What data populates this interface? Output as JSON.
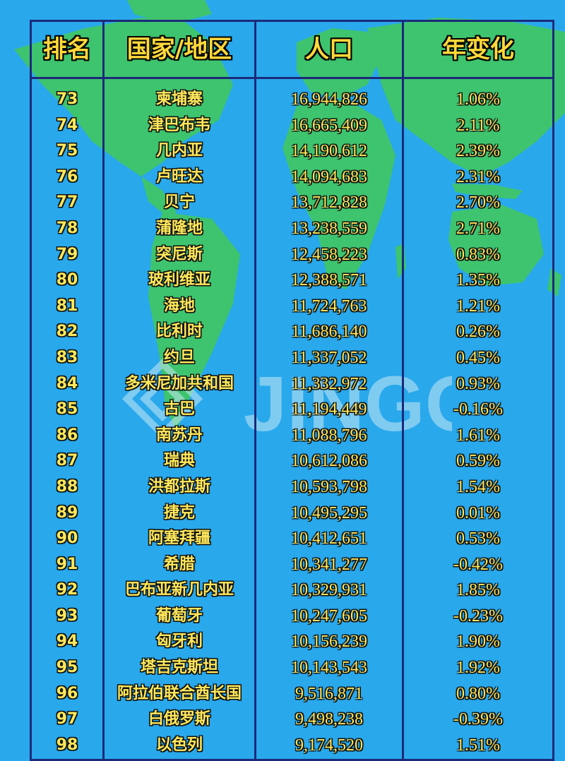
{
  "header": {
    "rank": "排名",
    "country": "国家/地区",
    "population": "人口",
    "change": "年变化"
  },
  "watermark": "JINGONG",
  "colors": {
    "background": "#29a8ec",
    "land": "#3ec46e",
    "border": "#1b2a7a",
    "text": "#ffd83a"
  },
  "rows": [
    {
      "rank": "73",
      "country": "柬埔寨",
      "population": "16,944,826",
      "change": "1.06%"
    },
    {
      "rank": "74",
      "country": "津巴布韦",
      "population": "16,665,409",
      "change": "2.11%"
    },
    {
      "rank": "75",
      "country": "几内亚",
      "population": "14,190,612",
      "change": "2.39%"
    },
    {
      "rank": "76",
      "country": "卢旺达",
      "population": "14,094,683",
      "change": "2.31%"
    },
    {
      "rank": "77",
      "country": "贝宁",
      "population": "13,712,828",
      "change": "2.70%"
    },
    {
      "rank": "78",
      "country": "蒲隆地",
      "population": "13,238,559",
      "change": "2.71%"
    },
    {
      "rank": "79",
      "country": "突尼斯",
      "population": "12,458,223",
      "change": "0.83%"
    },
    {
      "rank": "80",
      "country": "玻利维亚",
      "population": "12,388,571",
      "change": "1.35%"
    },
    {
      "rank": "81",
      "country": "海地",
      "population": "11,724,763",
      "change": "1.21%"
    },
    {
      "rank": "82",
      "country": "比利时",
      "population": "11,686,140",
      "change": "0.26%"
    },
    {
      "rank": "83",
      "country": "约旦",
      "population": "11,337,052",
      "change": "0.45%"
    },
    {
      "rank": "84",
      "country": "多米尼加共和国",
      "population": "11,332,972",
      "change": "0.93%"
    },
    {
      "rank": "85",
      "country": "古巴",
      "population": "11,194,449",
      "change": "-0.16%"
    },
    {
      "rank": "86",
      "country": "南苏丹",
      "population": "11,088,796",
      "change": "1.61%"
    },
    {
      "rank": "87",
      "country": "瑞典",
      "population": "10,612,086",
      "change": "0.59%"
    },
    {
      "rank": "88",
      "country": "洪都拉斯",
      "population": "10,593,798",
      "change": "1.54%"
    },
    {
      "rank": "89",
      "country": "捷克",
      "population": "10,495,295",
      "change": "0.01%"
    },
    {
      "rank": "90",
      "country": "阿塞拜疆",
      "population": "10,412,651",
      "change": "0.53%"
    },
    {
      "rank": "91",
      "country": "希腊",
      "population": "10,341,277",
      "change": "-0.42%"
    },
    {
      "rank": "92",
      "country": "巴布亚新几内亚",
      "population": "10,329,931",
      "change": "1.85%"
    },
    {
      "rank": "93",
      "country": "葡萄牙",
      "population": "10,247,605",
      "change": "-0.23%"
    },
    {
      "rank": "94",
      "country": "匈牙利",
      "population": "10,156,239",
      "change": "1.90%"
    },
    {
      "rank": "95",
      "country": "塔吉克斯坦",
      "population": "10,143,543",
      "change": "1.92%"
    },
    {
      "rank": "96",
      "country": "阿拉伯联合酋长国",
      "population": "9,516,871",
      "change": "0.80%"
    },
    {
      "rank": "97",
      "country": "白俄罗斯",
      "population": "9,498,238",
      "change": "-0.39%"
    },
    {
      "rank": "98",
      "country": "以色列",
      "population": "9,174,520",
      "change": "1.51%"
    }
  ]
}
